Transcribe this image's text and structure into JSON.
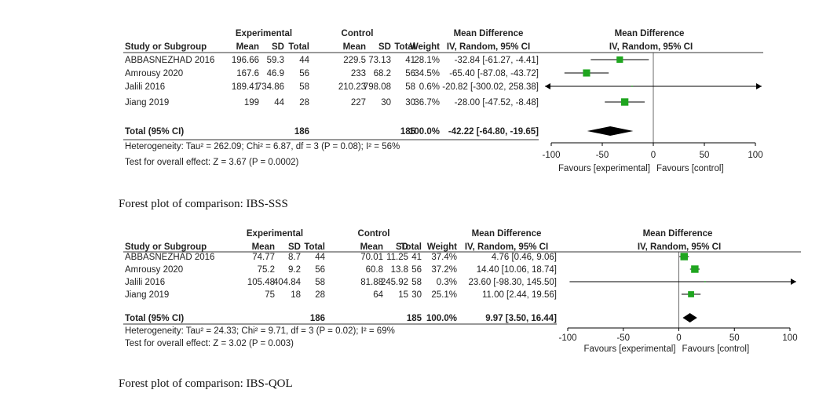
{
  "chart_data": [
    {
      "type": "forest",
      "caption": "Forest plot of comparison: IBS-SSS",
      "group_headers": [
        "Experimental",
        "Control",
        "Mean Difference",
        "Mean Difference"
      ],
      "column_headers": [
        "Study or Subgroup",
        "Mean",
        "SD",
        "Total",
        "Mean",
        "SD",
        "Total",
        "Weight",
        "IV, Random, 95% CI",
        "IV, Random, 95% CI"
      ],
      "studies": [
        {
          "name": "ABBASNEZHAD 2016",
          "exp_mean": "196.66",
          "exp_sd": "59.3",
          "exp_total": "44",
          "ctl_mean": "229.5",
          "ctl_sd": "73.13",
          "ctl_total": "41",
          "weight_label": "28.1%",
          "ci_label": "-32.84 [-61.27, -4.41]",
          "md": -32.84,
          "lo": -61.27,
          "hi": -4.41,
          "weight": 28.1
        },
        {
          "name": "Amrousy 2020",
          "exp_mean": "167.6",
          "exp_sd": "46.9",
          "exp_total": "56",
          "ctl_mean": "233",
          "ctl_sd": "68.2",
          "ctl_total": "56",
          "weight_label": "34.5%",
          "ci_label": "-65.40 [-87.08, -43.72]",
          "md": -65.4,
          "lo": -87.08,
          "hi": -43.72,
          "weight": 34.5
        },
        {
          "name": "Jalili 2016",
          "exp_mean": "189.41",
          "exp_sd": "734.86",
          "exp_total": "58",
          "ctl_mean": "210.23",
          "ctl_sd": "798.08",
          "ctl_total": "58",
          "weight_label": "0.6%",
          "ci_label": "-20.82 [-300.02, 258.38]",
          "md": -20.82,
          "lo": -300.02,
          "hi": 258.38,
          "weight": 0.6
        },
        {
          "name": "Jiang 2019",
          "exp_mean": "199",
          "exp_sd": "44",
          "exp_total": "28",
          "ctl_mean": "227",
          "ctl_sd": "30",
          "ctl_total": "30",
          "weight_label": "36.7%",
          "ci_label": "-28.00 [-47.52, -8.48]",
          "md": -28.0,
          "lo": -47.52,
          "hi": -8.48,
          "weight": 36.7
        }
      ],
      "total": {
        "label": "Total (95% CI)",
        "exp_total": "186",
        "ctl_total": "185",
        "weight_label": "100.0%",
        "ci_label": "-42.22 [-64.80, -19.65]",
        "md": -42.22,
        "lo": -64.8,
        "hi": -19.65
      },
      "heterogeneity": "Heterogeneity: Tau² = 262.09; Chi² = 6.87, df = 3 (P = 0.08); I² = 56%",
      "overall_effect": "Test for overall effect: Z = 3.67 (P = 0.0002)",
      "xlim": [
        -100,
        100
      ],
      "ticks": [
        -100,
        -50,
        0,
        50,
        100
      ],
      "tick_labels": [
        "-100",
        "-50",
        "0",
        "50",
        "100"
      ],
      "favours_left": "Favours [experimental]",
      "favours_right": "Favours [control]",
      "colors": {
        "study": "#1fa51f",
        "total": "#000000"
      }
    },
    {
      "type": "forest",
      "caption": "Forest plot of comparison: IBS-QOL",
      "group_headers": [
        "Experimental",
        "Control",
        "Mean Difference",
        "Mean Difference"
      ],
      "column_headers": [
        "Study or Subgroup",
        "Mean",
        "SD",
        "Total",
        "Mean",
        "SD",
        "Total",
        "Weight",
        "IV, Random, 95% CI",
        "IV, Random, 95% CI"
      ],
      "studies": [
        {
          "name": "ABBASNEZHAD 2016",
          "exp_mean": "74.77",
          "exp_sd": "8.7",
          "exp_total": "44",
          "ctl_mean": "70.01",
          "ctl_sd": "11.25",
          "ctl_total": "41",
          "weight_label": "37.4%",
          "ci_label": "4.76 [0.46, 9.06]",
          "md": 4.76,
          "lo": 0.46,
          "hi": 9.06,
          "weight": 37.4
        },
        {
          "name": "Amrousy 2020",
          "exp_mean": "75.2",
          "exp_sd": "9.2",
          "exp_total": "56",
          "ctl_mean": "60.8",
          "ctl_sd": "13.8",
          "ctl_total": "56",
          "weight_label": "37.2%",
          "ci_label": "14.40 [10.06, 18.74]",
          "md": 14.4,
          "lo": 10.06,
          "hi": 18.74,
          "weight": 37.2
        },
        {
          "name": "Jalili 2016",
          "exp_mean": "105.48",
          "exp_sd": "404.84",
          "exp_total": "58",
          "ctl_mean": "81.88",
          "ctl_sd": "245.92",
          "ctl_total": "58",
          "weight_label": "0.3%",
          "ci_label": "23.60 [-98.30, 145.50]",
          "md": 23.6,
          "lo": -98.3,
          "hi": 145.5,
          "weight": 0.3
        },
        {
          "name": "Jiang 2019",
          "exp_mean": "75",
          "exp_sd": "18",
          "exp_total": "28",
          "ctl_mean": "64",
          "ctl_sd": "15",
          "ctl_total": "30",
          "weight_label": "25.1%",
          "ci_label": "11.00 [2.44, 19.56]",
          "md": 11.0,
          "lo": 2.44,
          "hi": 19.56,
          "weight": 25.1
        }
      ],
      "total": {
        "label": "Total (95% CI)",
        "exp_total": "186",
        "ctl_total": "185",
        "weight_label": "100.0%",
        "ci_label": "9.97 [3.50, 16.44]",
        "md": 9.97,
        "lo": 3.5,
        "hi": 16.44
      },
      "heterogeneity": "Heterogeneity: Tau² = 24.33; Chi² = 9.71, df = 3 (P = 0.02); I² = 69%",
      "overall_effect": "Test for overall effect: Z = 3.02 (P = 0.003)",
      "xlim": [
        -100,
        100
      ],
      "ticks": [
        -100,
        -50,
        0,
        50,
        100
      ],
      "tick_labels": [
        "-100",
        "-50",
        "0",
        "50",
        "100"
      ],
      "favours_left": "Favours [experimental]",
      "favours_right": "Favours [control]",
      "colors": {
        "study": "#1fa51f",
        "total": "#000000"
      }
    }
  ]
}
